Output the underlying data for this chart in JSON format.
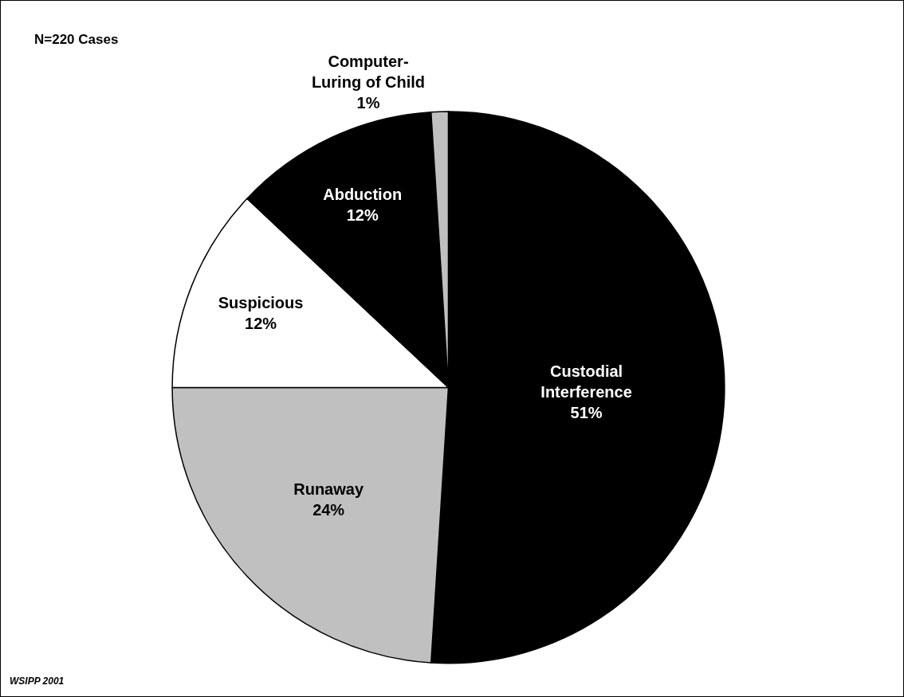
{
  "chart_data": {
    "type": "pie",
    "categories": [
      "Custodial Interference",
      "Runaway",
      "Suspicious",
      "Abduction",
      "Computer-Luring of Child"
    ],
    "values": [
      51,
      24,
      12,
      12,
      1
    ],
    "colors": [
      "#000000",
      "#c0c0c0",
      "#ffffff",
      "#000000",
      "#c0c0c0"
    ],
    "value_labels": [
      "51%",
      "24%",
      "12%",
      "12%",
      "1%"
    ],
    "legend": false,
    "annotations": [
      "N=220 Cases",
      "WSIPP 2001"
    ]
  }
}
